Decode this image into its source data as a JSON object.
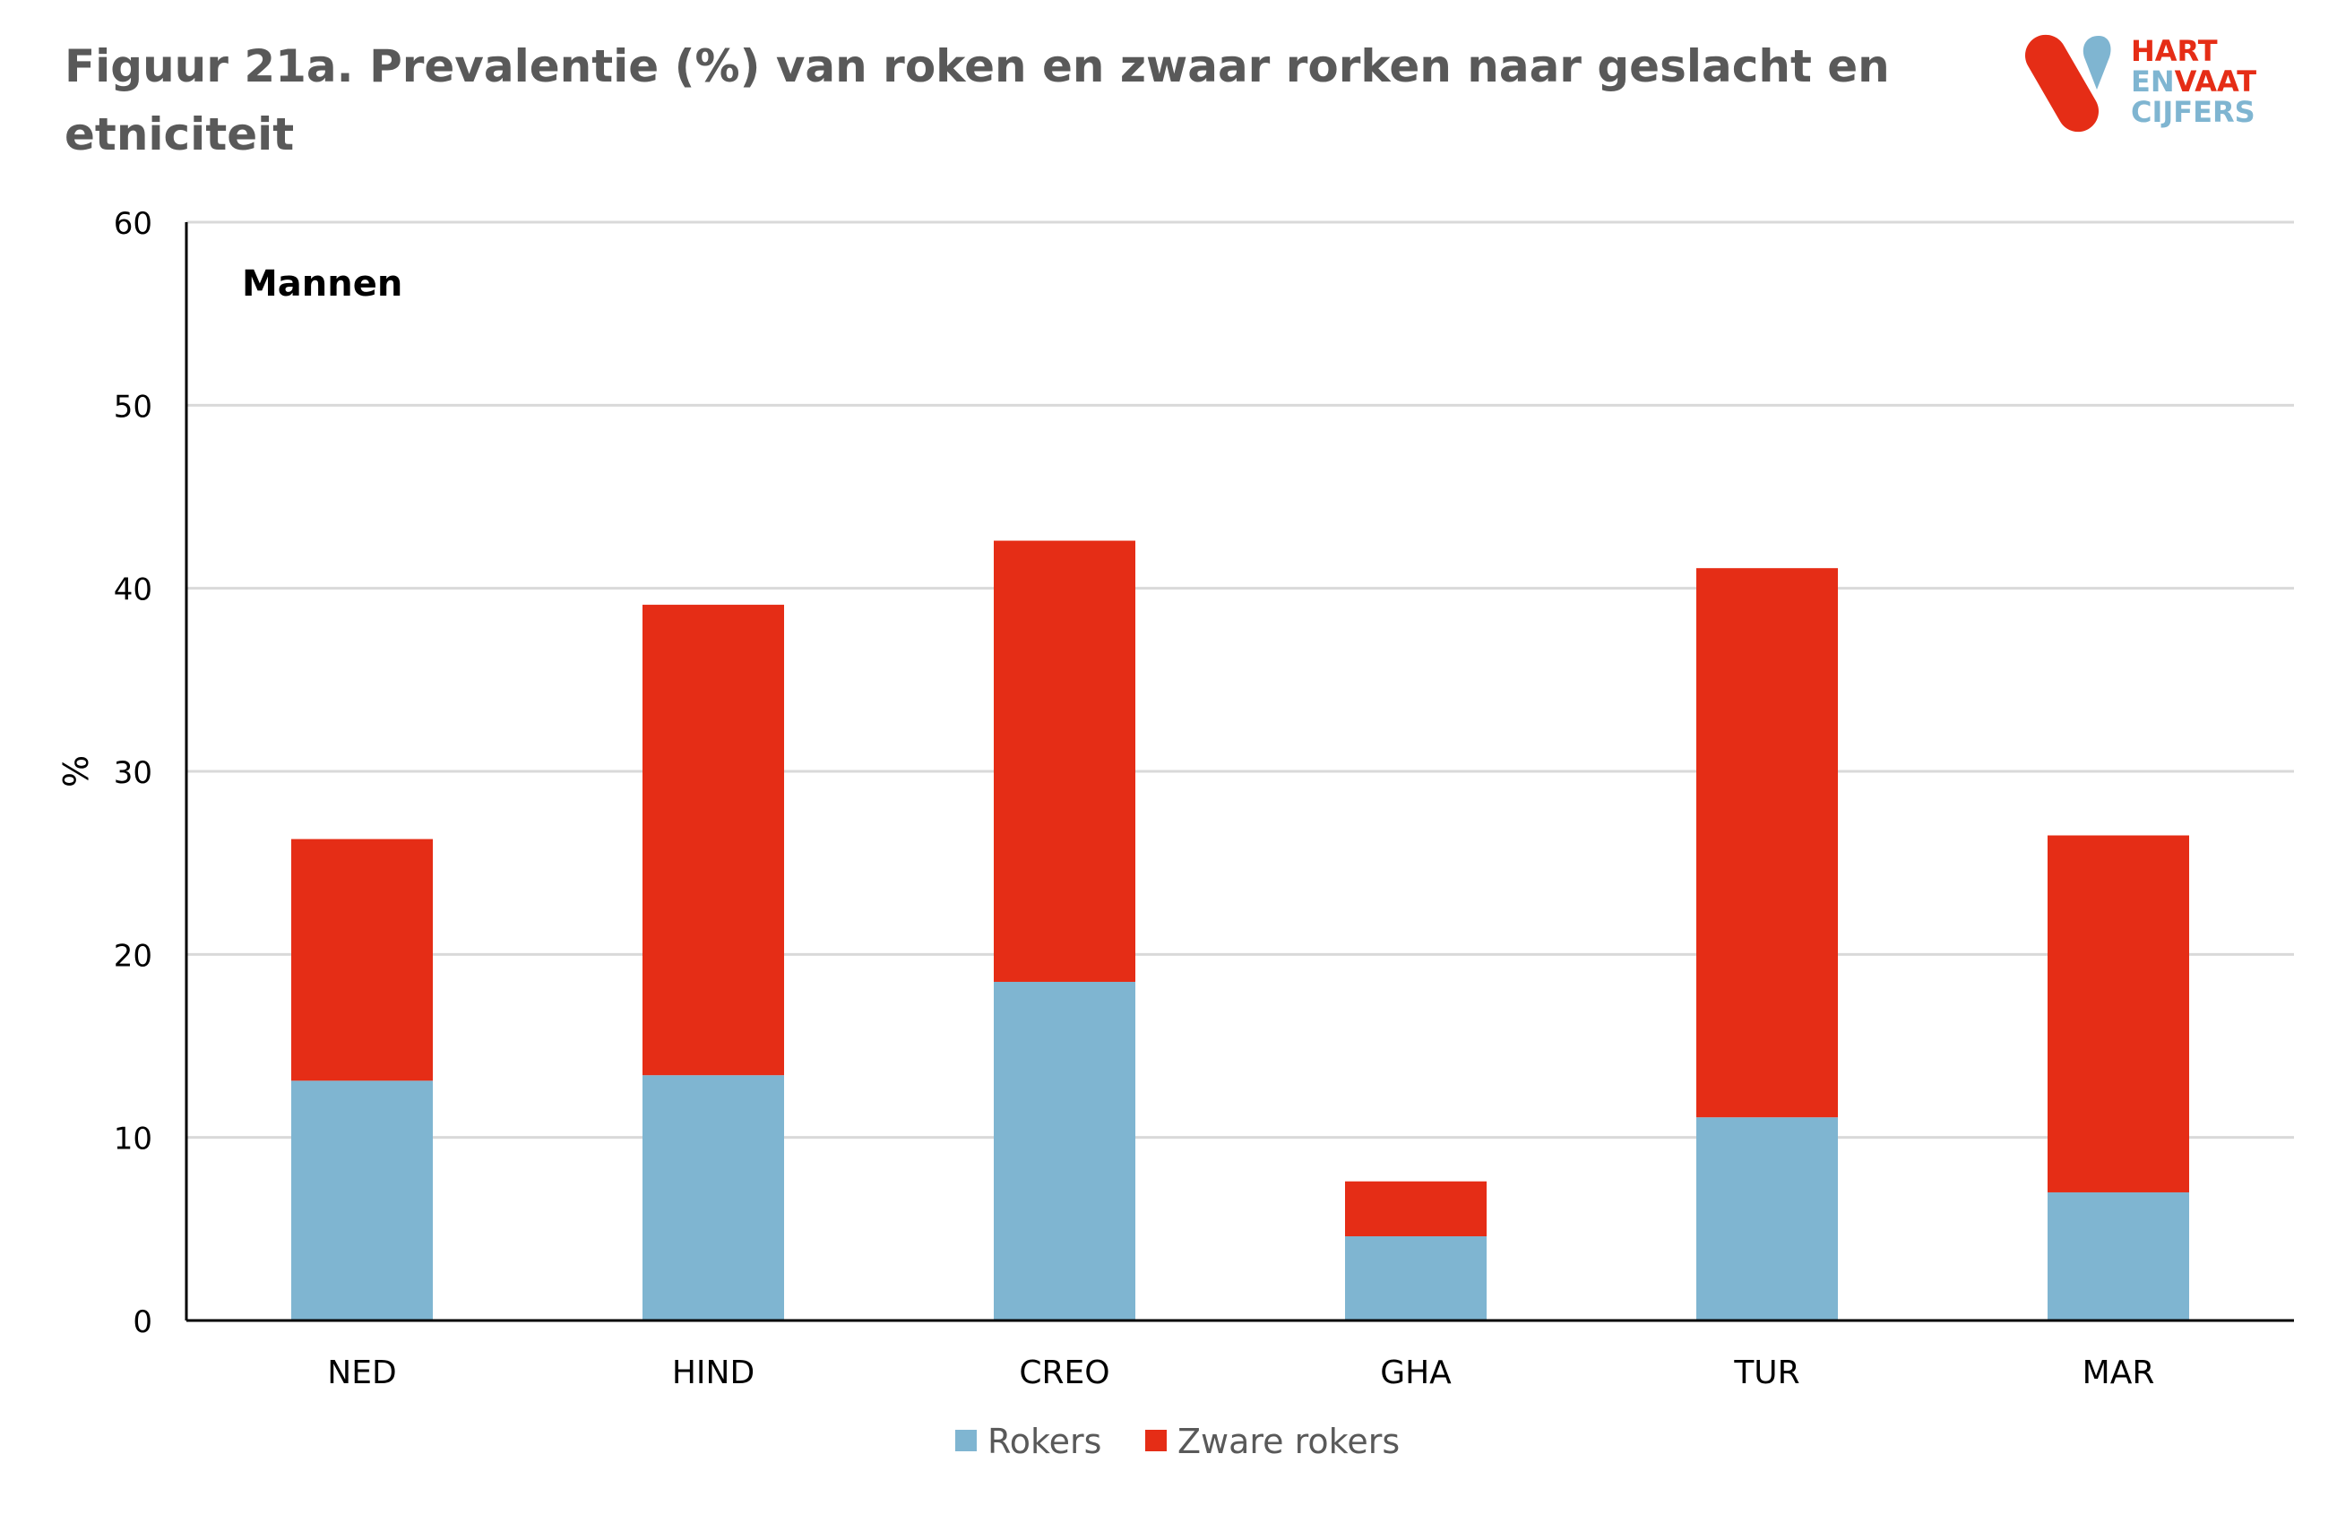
{
  "title": "Figuur 21a. Prevalentie (%) van roken en  zwaar rorken naar geslacht en etniciteit",
  "logo": {
    "line1": "HART",
    "line2a": "EN",
    "line2b": "VAAT",
    "line3": "CIJFERS"
  },
  "colors": {
    "rokers": "#7fb5d1",
    "zware_rokers": "#e52d16",
    "grid": "#d9d9d9",
    "axis": "#000000",
    "text": "#595959",
    "logo_red": "#e52d16",
    "logo_blue": "#7fb5d1"
  },
  "chart_data": {
    "type": "bar",
    "stacked": true,
    "panel_label": "Mannen",
    "ylabel": "%",
    "xlabel": "",
    "ylim": [
      0,
      60
    ],
    "yticks": [
      0,
      10,
      20,
      30,
      40,
      50,
      60
    ],
    "grid": true,
    "legend_position": "bottom",
    "categories": [
      "NED",
      "HIND",
      "CREO",
      "GHA",
      "TUR",
      "MAR"
    ],
    "series": [
      {
        "name": "Rokers",
        "values": [
          13.1,
          13.4,
          18.5,
          4.6,
          11.1,
          7.0
        ]
      },
      {
        "name": "Zware rokers",
        "values": [
          13.2,
          25.7,
          24.1,
          3.0,
          30.0,
          19.5
        ]
      }
    ]
  }
}
